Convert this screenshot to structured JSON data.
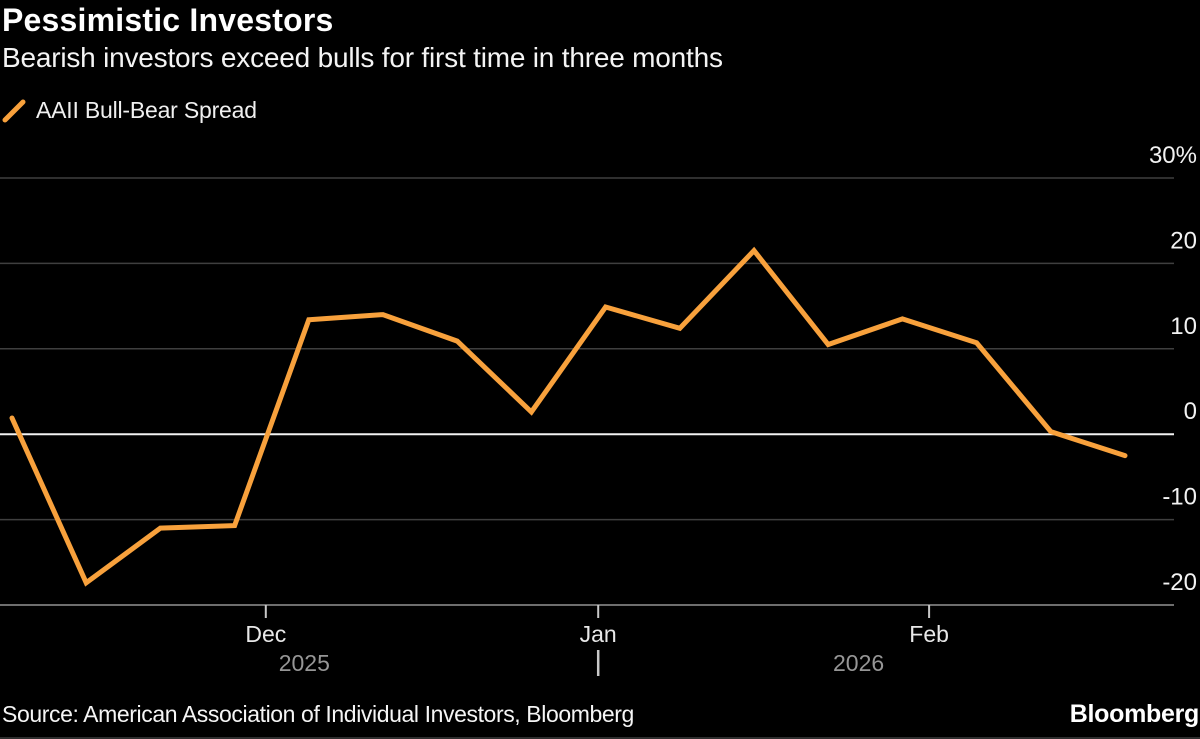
{
  "header": {
    "title": "Pessimistic Investors",
    "subtitle": "Bearish investors exceed bulls for first time in three months"
  },
  "legend": {
    "label": "AAII Bull-Bear Spread"
  },
  "footer": {
    "source": "Source: American Association of Individual Investors, Bloomberg",
    "brand": "Bloomberg"
  },
  "colors": {
    "background": "#000000",
    "accent": "#F8A13C",
    "grid": "#3f3f3f",
    "zero_line": "#f2f2f2",
    "bottom_axis": "#6e6e6e",
    "tick_mark": "#c8c8c8",
    "month_label": "#e8e8e8",
    "year_label": "#969696",
    "y_label": "#f2f2f2"
  },
  "chart_data": {
    "type": "line",
    "title": "AAII Bull-Bear Spread",
    "unit": "%",
    "frequency": "weekly",
    "ylim": [
      -20,
      30
    ],
    "grid": true,
    "legend_position": "top-left",
    "series": [
      {
        "name": "AAII Bull-Bear Spread",
        "color": "#F8A13C",
        "values": [
          1.9,
          -17.4,
          -11.0,
          -10.7,
          13.4,
          14.0,
          10.9,
          2.6,
          14.9,
          12.4,
          21.5,
          10.5,
          13.5,
          10.7,
          0.3,
          -2.5
        ]
      }
    ],
    "y_ticks": [
      {
        "value": 30,
        "label": "30%"
      },
      {
        "value": 20,
        "label": "20"
      },
      {
        "value": 10,
        "label": "10"
      },
      {
        "value": 0,
        "label": "0"
      },
      {
        "value": -10,
        "label": "-10"
      },
      {
        "value": -20,
        "label": "-20"
      }
    ],
    "x_ticks": [
      {
        "label": "Dec",
        "at": 3.42
      },
      {
        "label": "Jan",
        "at": 7.9
      },
      {
        "label": "Feb",
        "at": 12.36
      }
    ],
    "year_labels": [
      {
        "label": "2025",
        "at": 3.94
      },
      {
        "label": "2026",
        "at": 11.41
      }
    ],
    "year_divider_at": 7.9
  }
}
